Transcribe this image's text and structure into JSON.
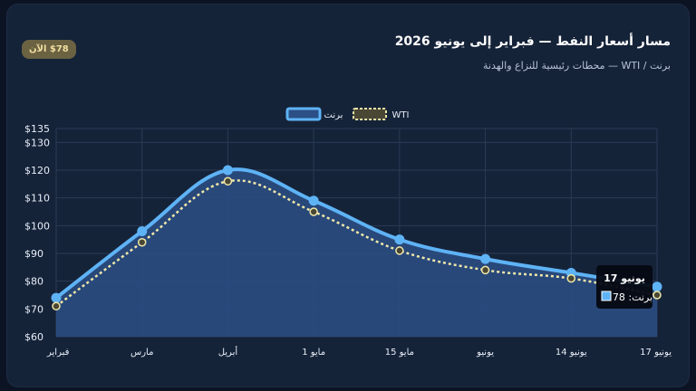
{
  "header": {
    "title": "مسار أسعار النفط — فبراير إلى يونيو 2026",
    "subtitle": "برنت / WTI — محطات رئيسية للنزاع والهدنة",
    "badge": "$78 الآن"
  },
  "tooltip": {
    "title": "17 يونيو",
    "value_label": "برنت: 78"
  },
  "colors": {
    "brent": "#5eb3f5",
    "wti": "#efe7a8",
    "area": "#2c4f86",
    "grid": "#2a3b55",
    "text": "#e8eef7"
  },
  "chart_data": {
    "type": "area",
    "categories": [
      "فبراير",
      "مارس",
      "أبريل",
      "1 مايو",
      "15 مايو",
      "يونيو",
      "14 يونيو",
      "17 يونيو"
    ],
    "series": [
      {
        "name": "برنت",
        "values": [
          74,
          98,
          120,
          109,
          95,
          88,
          83,
          78
        ]
      },
      {
        "name": "WTI",
        "values": [
          71,
          94,
          116,
          105,
          91,
          84,
          81,
          75
        ]
      }
    ],
    "y_ticks": [
      "$60",
      "$70",
      "$80",
      "$90",
      "$100",
      "$110",
      "$120",
      "$130",
      "$135"
    ],
    "y_tick_values": [
      60,
      70,
      80,
      90,
      100,
      110,
      120,
      130,
      135
    ],
    "ylim": [
      60,
      135
    ],
    "grid": true,
    "legend_position": "top-center"
  }
}
